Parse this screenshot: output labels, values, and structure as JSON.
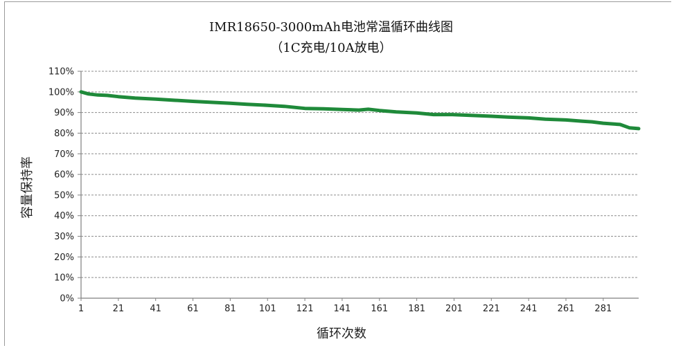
{
  "colors": {
    "series": "#1f8a3a",
    "grid": "#8c8c8c",
    "axis": "#7f7f7f",
    "text": "#222222",
    "background": "#ffffff"
  },
  "chart_data": {
    "type": "line",
    "title": "IMR18650-3000mAh电池常温循环曲线图",
    "subtitle": "（1C充电/10A放电）",
    "xlabel": "循环次数",
    "ylabel": "容量保持率",
    "xlim": [
      1,
      300
    ],
    "ylim": [
      0,
      110
    ],
    "y_unit": "%",
    "grid": "horizontal dashed",
    "legend": "none",
    "x_ticks": [
      1,
      21,
      41,
      61,
      81,
      101,
      121,
      141,
      161,
      181,
      201,
      221,
      241,
      261,
      281
    ],
    "y_ticks": [
      "0%",
      "10%",
      "20%",
      "30%",
      "40%",
      "50%",
      "60%",
      "70%",
      "80%",
      "90%",
      "100%",
      "110%"
    ],
    "series": [
      {
        "x": [
          1,
          5,
          10,
          15,
          21,
          30,
          41,
          50,
          61,
          70,
          81,
          90,
          101,
          110,
          121,
          131,
          141,
          150,
          155,
          161,
          170,
          181,
          190,
          200,
          210,
          221,
          230,
          241,
          250,
          261,
          270,
          275,
          281,
          290,
          295,
          300
        ],
        "y": [
          100,
          99,
          98.5,
          98.3,
          97.7,
          97,
          96.5,
          96,
          95.4,
          95,
          94.5,
          94,
          93.5,
          93,
          92,
          91.8,
          91.5,
          91.2,
          91.6,
          91,
          90.3,
          89.8,
          89,
          89,
          88.6,
          88.2,
          87.8,
          87.4,
          86.8,
          86.4,
          85.8,
          85.5,
          84.8,
          84.2,
          82.6,
          82.2
        ]
      }
    ]
  }
}
